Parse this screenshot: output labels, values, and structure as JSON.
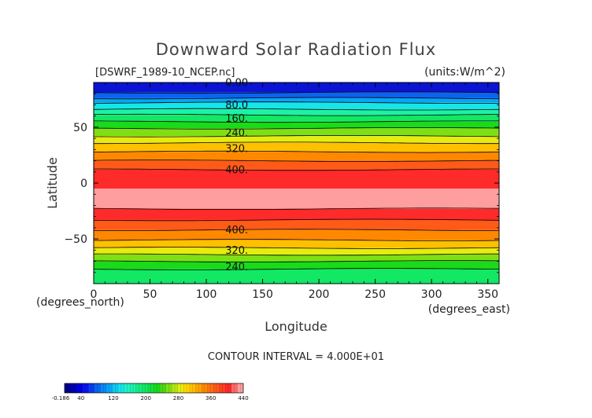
{
  "chart_data": {
    "type": "heatmap",
    "title": "Downward Solar Radiation Flux",
    "file_label": "[DSWRF_1989-10_NCEP.nc]",
    "units_label": "(units:W/m^2)",
    "xlabel": "Longitude",
    "ylabel": "Latitude",
    "x_unit_label": "(degrees_east)",
    "y_unit_label": "(degrees_north)",
    "xlim": [
      0,
      360
    ],
    "ylim": [
      -90,
      90
    ],
    "x_ticks": [
      0,
      50,
      100,
      150,
      200,
      250,
      300,
      350
    ],
    "y_ticks": [
      50,
      0,
      -50
    ],
    "x_tick_labels": [
      "0",
      "50",
      "100",
      "150",
      "200",
      "250",
      "300",
      "350"
    ],
    "y_tick_labels": [
      "50",
      "0",
      "−50"
    ],
    "contour_interval_text": "CONTOUR INTERVAL = 4.000E+01",
    "contour_interval": 40,
    "contour_labels": [
      {
        "text": "0.00",
        "lat": 90
      },
      {
        "text": "80.0",
        "lat": 70
      },
      {
        "text": "160.",
        "lat": 58
      },
      {
        "text": "240.",
        "lat": 45
      },
      {
        "text": "320.",
        "lat": 31
      },
      {
        "text": "400.",
        "lat": 12
      },
      {
        "text": "400.",
        "lat": -42
      },
      {
        "text": "320.",
        "lat": -60
      },
      {
        "text": "240.",
        "lat": -75
      }
    ],
    "bands": [
      {
        "lat_top": 90,
        "lat_bottom": 81,
        "color": "#0a14d2"
      },
      {
        "lat_top": 81,
        "lat_bottom": 76,
        "color": "#0a64f0"
      },
      {
        "lat_top": 76,
        "lat_bottom": 72,
        "color": "#06a6f6"
      },
      {
        "lat_top": 72,
        "lat_bottom": 66,
        "color": "#16e6e8"
      },
      {
        "lat_top": 66,
        "lat_bottom": 61,
        "color": "#1cf2a6"
      },
      {
        "lat_top": 61,
        "lat_bottom": 55,
        "color": "#12e864"
      },
      {
        "lat_top": 55,
        "lat_bottom": 49,
        "color": "#1ada1a"
      },
      {
        "lat_top": 49,
        "lat_bottom": 42,
        "color": "#7ee014"
      },
      {
        "lat_top": 42,
        "lat_bottom": 36,
        "color": "#e6ec10"
      },
      {
        "lat_top": 36,
        "lat_bottom": 28,
        "color": "#ffc000"
      },
      {
        "lat_top": 28,
        "lat_bottom": 20,
        "color": "#ff8800"
      },
      {
        "lat_top": 20,
        "lat_bottom": 12,
        "color": "#ff5a18"
      },
      {
        "lat_top": 12,
        "lat_bottom": -5,
        "color": "#ff2a2a"
      },
      {
        "lat_top": -5,
        "lat_bottom": -23,
        "color": "#ff9e9e"
      },
      {
        "lat_top": -23,
        "lat_bottom": -33,
        "color": "#ff2a2a"
      },
      {
        "lat_top": -33,
        "lat_bottom": -42,
        "color": "#ff5a18"
      },
      {
        "lat_top": -42,
        "lat_bottom": -51,
        "color": "#ff8800"
      },
      {
        "lat_top": -51,
        "lat_bottom": -58,
        "color": "#ffc000"
      },
      {
        "lat_top": -58,
        "lat_bottom": -64,
        "color": "#e6ec10"
      },
      {
        "lat_top": -64,
        "lat_bottom": -70,
        "color": "#7ee014"
      },
      {
        "lat_top": -70,
        "lat_bottom": -77,
        "color": "#1ada1a"
      },
      {
        "lat_top": -77,
        "lat_bottom": -90,
        "color": "#12e864"
      }
    ],
    "contour_lines_lat": [
      81,
      76,
      72,
      66,
      61,
      55,
      49,
      42,
      36,
      28,
      20,
      12,
      -23,
      -33,
      -42,
      -51,
      -58,
      -64,
      -70,
      -77
    ],
    "colorbar": {
      "min": -0.186,
      "max": 440,
      "tick_values": [
        -0.186,
        40,
        120,
        200,
        280,
        360,
        440
      ],
      "tick_labels": [
        "-0.186",
        "40",
        "120",
        "200",
        "280",
        "360",
        "440"
      ],
      "colors": [
        "#00008c",
        "#0000b4",
        "#0000dc",
        "#0a14f0",
        "#0a3cf0",
        "#0a64f0",
        "#0888f4",
        "#06a6f6",
        "#10c8f0",
        "#16e6e8",
        "#1cf2c8",
        "#1cf2a6",
        "#14ec84",
        "#12e864",
        "#10e040",
        "#1ada1a",
        "#4ad816",
        "#7ee014",
        "#b4e812",
        "#e6ec10",
        "#ffd800",
        "#ffc000",
        "#ffa400",
        "#ff8800",
        "#ff7010",
        "#ff5a18",
        "#ff4020",
        "#ff2a2a",
        "#ff6a6a",
        "#ff9e9e"
      ]
    }
  }
}
